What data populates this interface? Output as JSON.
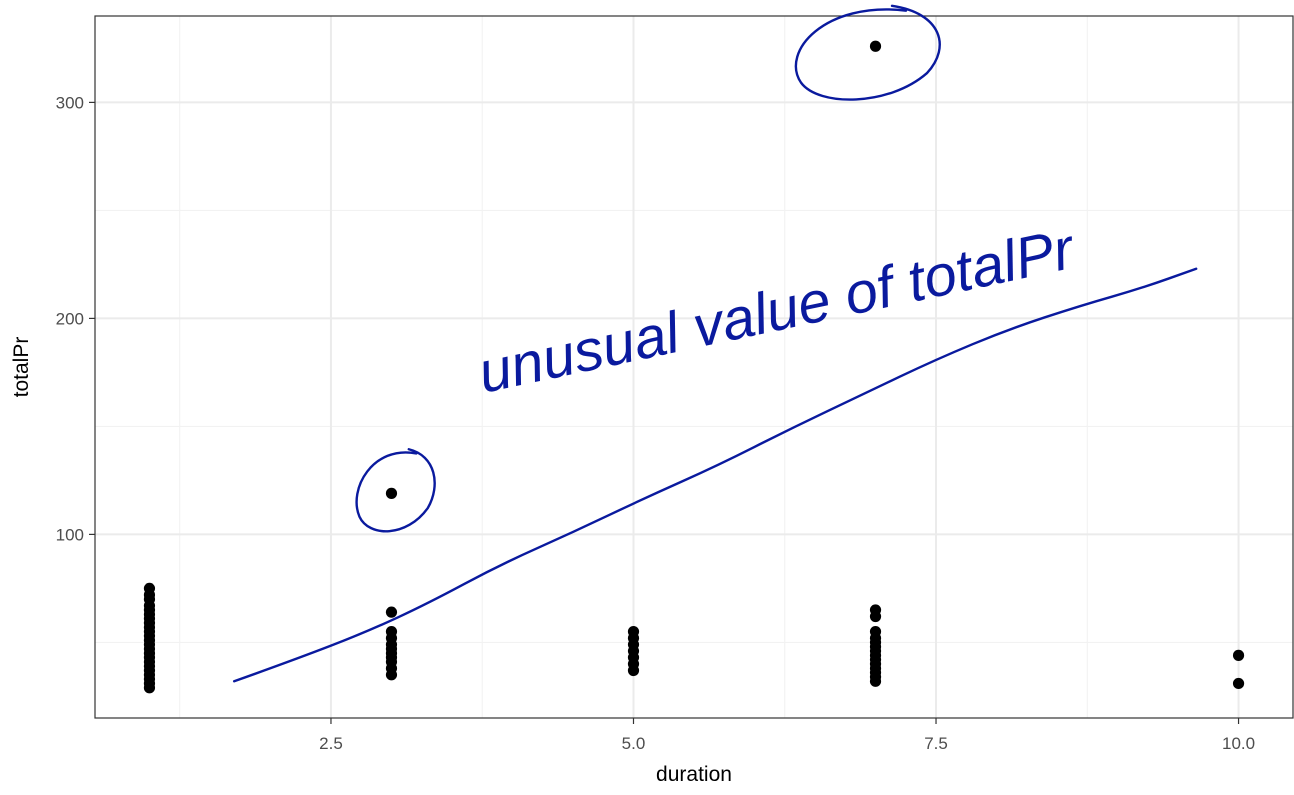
{
  "chart_data": {
    "type": "scatter",
    "title": "",
    "xlabel": "duration",
    "ylabel": "totalPr",
    "xlim": [
      0.55,
      10.45
    ],
    "ylim": [
      15,
      340
    ],
    "x_ticks": [
      2.5,
      5.0,
      7.5,
      10.0
    ],
    "x_tick_labels": [
      "2.5",
      "5.0",
      "7.5",
      "10.0"
    ],
    "y_ticks": [
      100,
      200,
      300
    ],
    "y_tick_labels": [
      "100",
      "200",
      "300"
    ],
    "grid": true,
    "legend": "none",
    "point_color": "#000000",
    "points": [
      {
        "x": 1,
        "y": 75
      },
      {
        "x": 1,
        "y": 72
      },
      {
        "x": 1,
        "y": 70
      },
      {
        "x": 1,
        "y": 67
      },
      {
        "x": 1,
        "y": 65
      },
      {
        "x": 1,
        "y": 63
      },
      {
        "x": 1,
        "y": 61
      },
      {
        "x": 1,
        "y": 59
      },
      {
        "x": 1,
        "y": 57
      },
      {
        "x": 1,
        "y": 55
      },
      {
        "x": 1,
        "y": 53
      },
      {
        "x": 1,
        "y": 51
      },
      {
        "x": 1,
        "y": 49
      },
      {
        "x": 1,
        "y": 47
      },
      {
        "x": 1,
        "y": 45
      },
      {
        "x": 1,
        "y": 43
      },
      {
        "x": 1,
        "y": 41
      },
      {
        "x": 1,
        "y": 39
      },
      {
        "x": 1,
        "y": 37
      },
      {
        "x": 1,
        "y": 35
      },
      {
        "x": 1,
        "y": 33
      },
      {
        "x": 1,
        "y": 31
      },
      {
        "x": 1,
        "y": 29
      },
      {
        "x": 3,
        "y": 119
      },
      {
        "x": 3,
        "y": 64
      },
      {
        "x": 3,
        "y": 55
      },
      {
        "x": 3,
        "y": 52
      },
      {
        "x": 3,
        "y": 49
      },
      {
        "x": 3,
        "y": 47
      },
      {
        "x": 3,
        "y": 45
      },
      {
        "x": 3,
        "y": 43
      },
      {
        "x": 3,
        "y": 41
      },
      {
        "x": 3,
        "y": 38
      },
      {
        "x": 3,
        "y": 35
      },
      {
        "x": 5,
        "y": 55
      },
      {
        "x": 5,
        "y": 52
      },
      {
        "x": 5,
        "y": 49
      },
      {
        "x": 5,
        "y": 46
      },
      {
        "x": 5,
        "y": 43
      },
      {
        "x": 5,
        "y": 40
      },
      {
        "x": 5,
        "y": 37
      },
      {
        "x": 7,
        "y": 326
      },
      {
        "x": 7,
        "y": 65
      },
      {
        "x": 7,
        "y": 62
      },
      {
        "x": 7,
        "y": 55
      },
      {
        "x": 7,
        "y": 52
      },
      {
        "x": 7,
        "y": 50
      },
      {
        "x": 7,
        "y": 48
      },
      {
        "x": 7,
        "y": 46
      },
      {
        "x": 7,
        "y": 44
      },
      {
        "x": 7,
        "y": 42
      },
      {
        "x": 7,
        "y": 40
      },
      {
        "x": 7,
        "y": 38
      },
      {
        "x": 7,
        "y": 36
      },
      {
        "x": 7,
        "y": 34
      },
      {
        "x": 7,
        "y": 32
      },
      {
        "x": 10,
        "y": 44
      },
      {
        "x": 10,
        "y": 31
      }
    ],
    "annotation": {
      "text": "unusual value of totalPr",
      "color": "#0a1a9e",
      "circled_points": [
        {
          "x": 3,
          "y": 119
        },
        {
          "x": 7,
          "y": 326
        }
      ],
      "trend_curve": [
        {
          "x": 1.7,
          "y": 32
        },
        {
          "x": 2.2,
          "y": 42
        },
        {
          "x": 2.8,
          "y": 55
        },
        {
          "x": 3.3,
          "y": 68
        },
        {
          "x": 3.9,
          "y": 86
        },
        {
          "x": 4.5,
          "y": 101
        },
        {
          "x": 5.1,
          "y": 117
        },
        {
          "x": 5.7,
          "y": 132
        },
        {
          "x": 6.3,
          "y": 149
        },
        {
          "x": 6.9,
          "y": 165
        },
        {
          "x": 7.5,
          "y": 181
        },
        {
          "x": 8.1,
          "y": 195
        },
        {
          "x": 8.7,
          "y": 206
        },
        {
          "x": 9.2,
          "y": 214
        },
        {
          "x": 9.65,
          "y": 223
        }
      ]
    }
  }
}
